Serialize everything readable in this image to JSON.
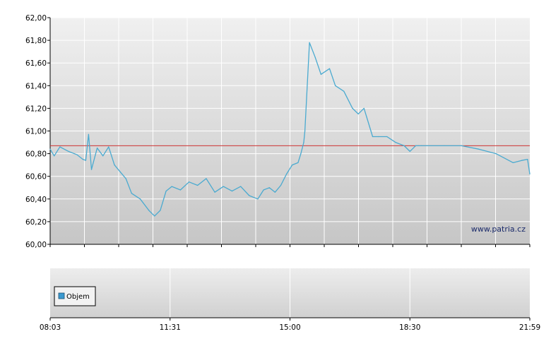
{
  "chart_data": [
    {
      "type": "line",
      "title": "",
      "xlabel": "",
      "ylabel": "",
      "ylim": [
        60.0,
        62.0
      ],
      "y_ticks": [
        "60,00",
        "60,20",
        "60,40",
        "60,60",
        "60,80",
        "61,00",
        "61,20",
        "61,40",
        "61,60",
        "61,80",
        "62,00"
      ],
      "x_ticks": [
        "08:03",
        "11:31",
        "15:00",
        "18:30",
        "21:59"
      ],
      "xlim": [
        "08:03",
        "21:59"
      ],
      "grid": true,
      "reference_line": {
        "value": 60.87,
        "color": "#cc3333"
      },
      "series": [
        {
          "color": "#4aaad0",
          "x": [
            "08:03",
            "08:10",
            "08:20",
            "08:35",
            "08:50",
            "09:00",
            "09:05",
            "09:10",
            "09:15",
            "09:25",
            "09:35",
            "09:45",
            "09:55",
            "10:05",
            "10:15",
            "10:25",
            "10:40",
            "10:55",
            "11:05",
            "11:15",
            "11:25",
            "11:35",
            "11:50",
            "12:05",
            "12:20",
            "12:35",
            "12:50",
            "13:05",
            "13:20",
            "13:35",
            "13:50",
            "14:05",
            "14:15",
            "14:25",
            "14:35",
            "14:45",
            "14:55",
            "15:05",
            "15:15",
            "15:20",
            "15:25",
            "15:27",
            "15:35",
            "15:45",
            "15:55",
            "16:10",
            "16:20",
            "16:35",
            "16:50",
            "17:00",
            "17:10",
            "17:25",
            "17:35",
            "17:50",
            "18:05",
            "18:20",
            "18:30",
            "18:40",
            "18:45",
            "18:50",
            "19:00",
            "19:30",
            "20:00",
            "20:30",
            "21:00",
            "21:30",
            "21:45",
            "21:55",
            "21:59"
          ],
          "y": [
            60.84,
            60.78,
            60.86,
            60.82,
            60.79,
            60.75,
            60.74,
            60.97,
            60.66,
            60.85,
            60.78,
            60.86,
            60.7,
            60.64,
            60.58,
            60.45,
            60.4,
            60.3,
            60.25,
            60.3,
            60.47,
            60.51,
            60.48,
            60.55,
            60.52,
            60.58,
            60.46,
            60.51,
            60.47,
            60.51,
            60.43,
            60.4,
            60.48,
            60.5,
            60.46,
            60.52,
            60.62,
            60.7,
            60.72,
            60.8,
            60.9,
            61.0,
            61.78,
            61.65,
            61.5,
            61.55,
            61.4,
            61.35,
            61.2,
            61.15,
            61.2,
            60.95,
            60.95,
            60.95,
            60.9,
            60.87,
            60.82,
            60.87,
            60.87,
            60.87,
            60.87,
            60.87,
            60.87,
            60.84,
            60.8,
            60.72,
            60.74,
            60.75,
            60.62
          ]
        }
      ]
    },
    {
      "type": "bar",
      "title": "",
      "legend": [
        "Objem"
      ],
      "legend_position": "bottom-left",
      "x_ticks": [
        "08:03",
        "11:31",
        "15:00",
        "18:30",
        "21:59"
      ],
      "series": [
        {
          "name": "Objem",
          "values": []
        }
      ]
    }
  ],
  "watermark": "www.patria.cz",
  "colors": {
    "line": "#4aaad0",
    "reference": "#cc3333",
    "legend_swatch": "#3b9ad0"
  }
}
